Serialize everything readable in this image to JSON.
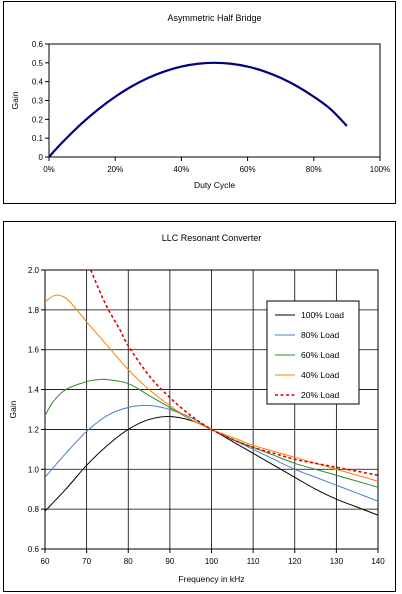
{
  "chart_data": [
    {
      "type": "line",
      "title": "Asymmetric Half Bridge",
      "xlabel": "Duty Cycle",
      "ylabel": "Gain",
      "xlim": [
        0,
        100
      ],
      "ylim": [
        0,
        0.6
      ],
      "x_ticks": [
        "0%",
        "20%",
        "40%",
        "60%",
        "80%",
        "100%"
      ],
      "y_ticks": [
        "0",
        "0.1",
        "0.2",
        "0.3",
        "0.4",
        "0.5",
        "0.6"
      ],
      "x_tick_values": [
        0,
        20,
        40,
        60,
        80,
        100
      ],
      "y_tick_values": [
        0,
        0.1,
        0.2,
        0.3,
        0.4,
        0.5,
        0.6
      ],
      "grid": false,
      "series": [
        {
          "color": "#000080",
          "x": [
            0,
            2,
            5,
            10,
            15,
            20,
            25,
            30,
            35,
            40,
            45,
            50,
            55,
            60,
            65,
            70,
            75,
            80,
            85,
            90
          ],
          "y": [
            0,
            0.04,
            0.095,
            0.18,
            0.255,
            0.32,
            0.375,
            0.42,
            0.455,
            0.48,
            0.495,
            0.5,
            0.495,
            0.48,
            0.455,
            0.42,
            0.375,
            0.32,
            0.255,
            0.165
          ]
        }
      ]
    },
    {
      "type": "line",
      "title": "LLC Resonant Converter",
      "xlabel": "Frequency in kHz",
      "ylabel": "Gain",
      "xlim": [
        60,
        140
      ],
      "ylim": [
        0.6,
        2.0
      ],
      "x_ticks": [
        "60",
        "70",
        "80",
        "90",
        "100",
        "110",
        "120",
        "130",
        "140"
      ],
      "y_ticks": [
        "0.6",
        "0.8",
        "1.0",
        "1.2",
        "1.4",
        "1.6",
        "1.8",
        "2.0"
      ],
      "x_tick_values": [
        60,
        70,
        80,
        90,
        100,
        110,
        120,
        130,
        140
      ],
      "y_tick_values": [
        0.6,
        0.8,
        1.0,
        1.2,
        1.4,
        1.6,
        1.8,
        2.0
      ],
      "grid": true,
      "legend_position": "right",
      "series": [
        {
          "name": "100% Load",
          "color": "#000000",
          "dash": false,
          "x": [
            60,
            65,
            70,
            75,
            80,
            85,
            90,
            95,
            100,
            105,
            110,
            115,
            120,
            125,
            130,
            135,
            140
          ],
          "y": [
            0.79,
            0.9,
            1.02,
            1.12,
            1.2,
            1.25,
            1.265,
            1.245,
            1.2,
            1.14,
            1.08,
            1.02,
            0.96,
            0.9,
            0.85,
            0.81,
            0.77
          ]
        },
        {
          "name": "80% Load",
          "color": "#4a7fd0",
          "dash": false,
          "x": [
            60,
            65,
            70,
            75,
            80,
            85,
            90,
            95,
            100,
            105,
            110,
            115,
            120,
            125,
            130,
            135,
            140
          ],
          "y": [
            0.96,
            1.08,
            1.19,
            1.27,
            1.31,
            1.32,
            1.3,
            1.26,
            1.2,
            1.15,
            1.1,
            1.05,
            1.0,
            0.96,
            0.92,
            0.88,
            0.84
          ]
        },
        {
          "name": "60% Load",
          "color": "#2e8b2e",
          "dash": false,
          "x": [
            60,
            62,
            65,
            70,
            73,
            75,
            80,
            85,
            90,
            95,
            100,
            105,
            110,
            115,
            120,
            125,
            130,
            135,
            140
          ],
          "y": [
            1.27,
            1.34,
            1.4,
            1.44,
            1.45,
            1.45,
            1.43,
            1.37,
            1.31,
            1.25,
            1.2,
            1.15,
            1.11,
            1.07,
            1.03,
            1.0,
            0.97,
            0.94,
            0.91
          ]
        },
        {
          "name": "40% Load",
          "color": "#ff8000",
          "dash": false,
          "x": [
            60,
            62,
            64,
            66,
            70,
            75,
            80,
            85,
            90,
            95,
            100,
            105,
            110,
            115,
            120,
            125,
            130,
            135,
            140
          ],
          "y": [
            1.84,
            1.87,
            1.87,
            1.84,
            1.74,
            1.62,
            1.5,
            1.4,
            1.32,
            1.25,
            1.2,
            1.16,
            1.12,
            1.09,
            1.06,
            1.03,
            1.0,
            0.97,
            0.94
          ]
        },
        {
          "name": "20% Load",
          "color": "#dd0000",
          "dash": true,
          "x": [
            71,
            73,
            75,
            78,
            80,
            85,
            90,
            95,
            100,
            105,
            110,
            115,
            120,
            125,
            130,
            135,
            140
          ],
          "y": [
            2.0,
            1.9,
            1.81,
            1.7,
            1.62,
            1.47,
            1.36,
            1.27,
            1.2,
            1.15,
            1.11,
            1.08,
            1.05,
            1.03,
            1.01,
            0.99,
            0.97
          ]
        }
      ]
    }
  ]
}
